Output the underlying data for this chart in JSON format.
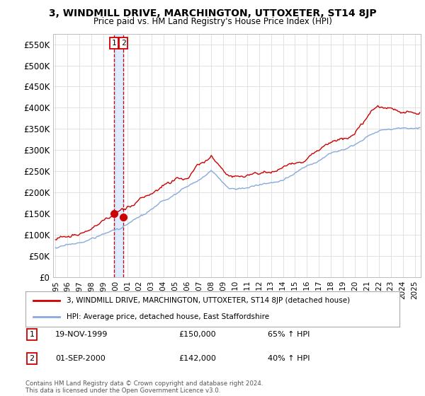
{
  "title": "3, WINDMILL DRIVE, MARCHINGTON, UTTOXETER, ST14 8JP",
  "subtitle": "Price paid vs. HM Land Registry's House Price Index (HPI)",
  "background_color": "#ffffff",
  "grid_color": "#dddddd",
  "line1_color": "#cc0000",
  "line2_color": "#88aadd",
  "vline_color": "#cc0000",
  "vfill_color": "#cce0ff",
  "ylim": [
    0,
    575000
  ],
  "yticks": [
    0,
    50000,
    100000,
    150000,
    200000,
    250000,
    300000,
    350000,
    400000,
    450000,
    500000,
    550000
  ],
  "ytick_labels": [
    "£0",
    "£50K",
    "£100K",
    "£150K",
    "£200K",
    "£250K",
    "£300K",
    "£350K",
    "£400K",
    "£450K",
    "£500K",
    "£550K"
  ],
  "legend1_label": "3, WINDMILL DRIVE, MARCHINGTON, UTTOXETER, ST14 8JP (detached house)",
  "legend2_label": "HPI: Average price, detached house, East Staffordshire",
  "sale1_num": "1",
  "sale1_date": "19-NOV-1999",
  "sale1_price": "£150,000",
  "sale1_hpi": "65% ↑ HPI",
  "sale2_num": "2",
  "sale2_date": "01-SEP-2000",
  "sale2_price": "£142,000",
  "sale2_hpi": "40% ↑ HPI",
  "footer": "Contains HM Land Registry data © Crown copyright and database right 2024.\nThis data is licensed under the Open Government Licence v3.0.",
  "marker1_x": 1999.88,
  "marker1_y": 150000,
  "marker2_x": 2000.67,
  "marker2_y": 142000,
  "vline_x1": 1999.88,
  "vline_x2": 2000.67,
  "xmin": 1994.8,
  "xmax": 2025.5
}
